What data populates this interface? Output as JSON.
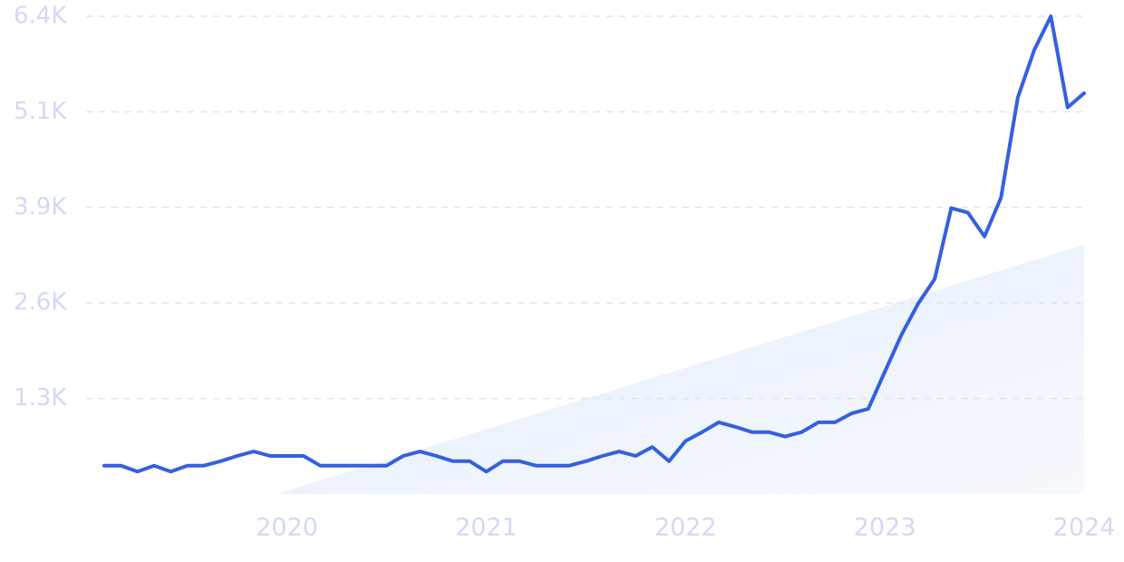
{
  "chart_data": {
    "type": "line",
    "x": [
      2019.083,
      2019.167,
      2019.25,
      2019.333,
      2019.417,
      2019.5,
      2019.583,
      2019.667,
      2019.75,
      2019.833,
      2019.917,
      2020,
      2020.083,
      2020.167,
      2020.25,
      2020.333,
      2020.417,
      2020.5,
      2020.583,
      2020.667,
      2020.75,
      2020.833,
      2020.917,
      2021,
      2021.083,
      2021.167,
      2021.25,
      2021.333,
      2021.417,
      2021.5,
      2021.583,
      2021.667,
      2021.75,
      2021.833,
      2021.917,
      2022,
      2022.083,
      2022.167,
      2022.25,
      2022.333,
      2022.417,
      2022.5,
      2022.583,
      2022.667,
      2022.75,
      2022.833,
      2022.917,
      2023,
      2023.083,
      2023.167,
      2023.25,
      2023.333,
      2023.417,
      2023.5,
      2023.583,
      2023.667,
      2023.75,
      2023.833,
      2023.917,
      2024
    ],
    "values": [
      380,
      380,
      300,
      380,
      300,
      380,
      380,
      440,
      510,
      570,
      510,
      510,
      510,
      380,
      380,
      380,
      380,
      380,
      510,
      570,
      510,
      440,
      440,
      300,
      440,
      440,
      380,
      380,
      380,
      440,
      510,
      570,
      510,
      630,
      440,
      710,
      830,
      960,
      900,
      830,
      830,
      770,
      830,
      960,
      960,
      1080,
      1140,
      1640,
      2130,
      2550,
      2880,
      3830,
      3770,
      3450,
      3970,
      5310,
      5950,
      6400,
      5180,
      5370
    ],
    "color": "#3460e0",
    "xlim": [
      2019.083,
      2024
    ],
    "xticks": [
      2020,
      2021,
      2022,
      2023,
      2024
    ],
    "ylim": [
      0,
      6400
    ],
    "yticks": [
      {
        "value": 1280,
        "label": "1.3K"
      },
      {
        "value": 2560,
        "label": "2.6K"
      },
      {
        "value": 3840,
        "label": "3.9K"
      },
      {
        "value": 5120,
        "label": "5.1K"
      },
      {
        "value": 6400,
        "label": "6.4K"
      }
    ],
    "grid": true
  }
}
